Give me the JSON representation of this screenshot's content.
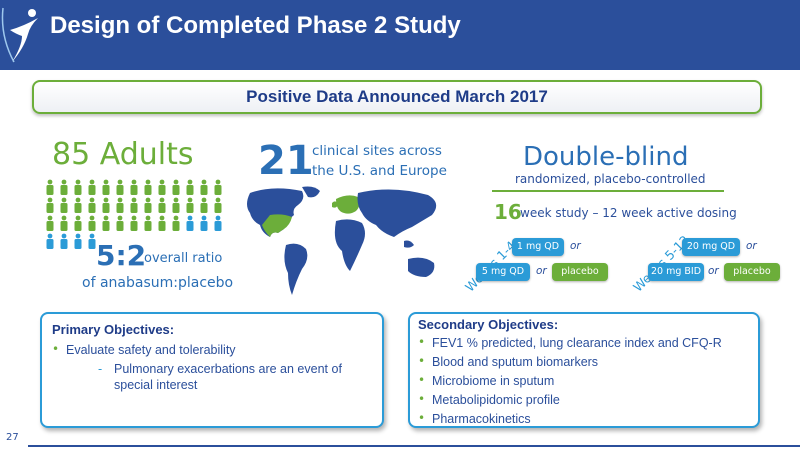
{
  "header": {
    "title": "Design of Completed Phase 2 Study"
  },
  "banner": {
    "text": "Positive Data Announced March 2017"
  },
  "enrollment": {
    "count_text": "85 Adults",
    "ratio_big": "5:2",
    "ratio_small": "overall ratio",
    "ratio_line2": "of anabasum:placebo"
  },
  "sites": {
    "count": "21",
    "line1": "clinical sites across",
    "line2": "the U.S. and Europe"
  },
  "design": {
    "title": "Double-blind",
    "subtitle": "randomized, placebo-controlled",
    "weeks_num": "16",
    "weeks_text": "week study – 12 week active dosing",
    "period1": {
      "label": "Weeks 1-4",
      "dose_top": "1 mg QD",
      "dose_bottom": "5 mg QD",
      "placebo": "placebo",
      "or": "or"
    },
    "period2": {
      "label": "Weeks 5-12",
      "dose_top": "20 mg QD",
      "dose_bottom": "20 mg BID",
      "placebo": "placebo",
      "or": "or"
    }
  },
  "primary": {
    "title": "Primary Objectives:",
    "items": [
      "Evaluate safety and tolerability"
    ],
    "subitems": [
      "Pulmonary exacerbations are an event of",
      "special interest"
    ]
  },
  "secondary": {
    "title": "Secondary Objectives:",
    "items": [
      "FEV1 % predicted, lung clearance index and CFQ-R",
      "Blood and sputum biomarkers",
      "Microbiome in sputum",
      "Metabolipidomic profile",
      "Pharmacokinetics"
    ]
  },
  "footer": {
    "page_number": "27"
  },
  "colors": {
    "navy": "#2b4f9b",
    "green": "#6cae3a",
    "light_blue": "#2b9bd7"
  }
}
